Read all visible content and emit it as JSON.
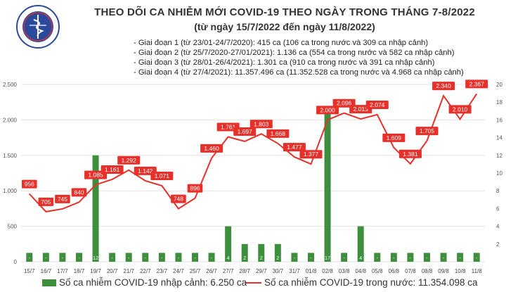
{
  "title": "THEO DÕI CA NHIỄM MỚI COVID-19 THEO NGÀY TRONG THÁNG 7-8/2022",
  "subtitle": "(từ ngày 15/7/2022 đến ngày 11/8/2022)",
  "phases": [
    "- Giai đoạn 1 (từ 23/01-24/7/2020): 415 ca (106 ca trong nước và 309 ca nhập cảnh)",
    "- Giai đoạn 2 (từ 25/7/2020-27/01/2021): 1.136 ca (554 ca trong nước và 582 ca nhập cảnh)",
    "- Giai đoạn 3 (từ 28/01-26/4/2021): 1.301 ca (910 ca trong nước và 391 ca nhập cảnh)",
    "- Giai đoạn 4 (từ 27/4/2021): 11.357.496 ca (11.352.528 ca trong nước và 4.968 ca nhập cảnh)"
  ],
  "logo": {
    "text": "BỘ Y TẾ",
    "subtext": "MINISTRY OF HEALTH"
  },
  "legend": {
    "bar": "Số ca nhiễm COVID-19 nhập cảnh: 6.250 ca",
    "line": "Số ca nhiễm COVID-19 trong nước: 11.354.098 ca"
  },
  "colors": {
    "bar": "#3d8f3d",
    "line": "#e8302a",
    "label_bg": "#e8302a"
  },
  "chart_data": {
    "type": "bar+line",
    "categories": [
      "15/7",
      "16/7",
      "17/7",
      "18/7",
      "19/7",
      "20/7",
      "21/7",
      "22/7",
      "23/7",
      "24/7",
      "25/7",
      "26/7",
      "27/7",
      "28/7",
      "29/7",
      "30/7",
      "31/7",
      "01/8",
      "02/8",
      "03/8",
      "04/8",
      "05/8",
      "06/8",
      "07/8",
      "08/8",
      "09/8",
      "10/8",
      "11/8"
    ],
    "series": [
      {
        "name": "Số ca nhiễm COVID-19 trong nước",
        "type": "line",
        "axis": "left",
        "values": [
          956,
          705,
          745,
          840,
          1085,
          1161,
          1292,
          1142,
          1071,
          748,
          896,
          1460,
          1761,
          1697,
          1803,
          1668,
          1477,
          1377,
          2000,
          2096,
          2013,
          2074,
          1609,
          1381,
          1705,
          2340,
          2010,
          2367
        ],
        "labels": [
          "956",
          "705",
          "745",
          "840",
          "1.085",
          "1.161",
          "1.292",
          "1.142",
          "1.071",
          "748",
          "896",
          "1.460",
          "1.761",
          "1.697",
          "1.803",
          "1.668",
          "1.477",
          "1.377",
          "2.000",
          "2.096",
          "2.013",
          "2.074",
          "1.609",
          "1.381",
          "1.705",
          "2.340",
          "2.010",
          "2.367"
        ]
      },
      {
        "name": "Số ca nhiễm COVID-19 nhập cảnh",
        "type": "bar",
        "axis": "right",
        "values": [
          1,
          1,
          1,
          1,
          12,
          1,
          1,
          1,
          1,
          1,
          1,
          1,
          4,
          2,
          2,
          2,
          1,
          1,
          17,
          1,
          4,
          1,
          1,
          1,
          1,
          1,
          1,
          1
        ],
        "labels": [
          "-",
          "-",
          "-",
          "-",
          "12",
          "-",
          "-",
          "-",
          "-",
          "-",
          "-",
          "-",
          "4",
          "2",
          "2",
          "2",
          "-",
          "-",
          "17",
          "-",
          "4",
          "-",
          "-",
          "-",
          "-",
          "-",
          "-",
          "-"
        ]
      }
    ],
    "y_left": {
      "range": [
        0,
        2500
      ],
      "ticks": [
        "0",
        "500",
        "1.000",
        "1.500",
        "2.000",
        "2.500"
      ],
      "tick_values": [
        0,
        500,
        1000,
        1500,
        2000,
        2500
      ]
    },
    "y_right": {
      "range": [
        0,
        20
      ],
      "ticks": [
        "2",
        "4",
        "6",
        "8",
        "10",
        "12",
        "14",
        "16",
        "18",
        "20"
      ],
      "tick_values": [
        2,
        4,
        6,
        8,
        10,
        12,
        14,
        16,
        18,
        20
      ]
    },
    "grid": true
  }
}
